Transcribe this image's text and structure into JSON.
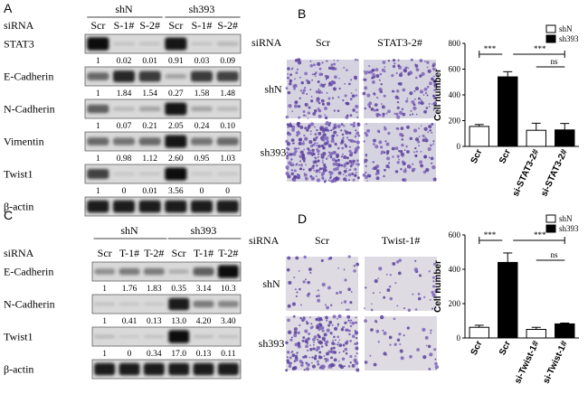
{
  "panelA": {
    "letter": "A",
    "siRNA_label": "siRNA",
    "group1": "shN",
    "group2": "sh393",
    "lanes": [
      "Scr",
      "S-1#",
      "S-2#",
      "Scr",
      "S-1#",
      "S-2#"
    ],
    "blots": [
      {
        "name": "STAT3",
        "quant": [
          "1",
          "0.02",
          "0.01",
          "0.91",
          "0.03",
          "0.09"
        ],
        "intensity": [
          1,
          0.05,
          0.04,
          0.95,
          0.05,
          0.1
        ]
      },
      {
        "name": "E-Cadherin",
        "quant": [
          "1",
          "1.84",
          "1.54",
          "0.27",
          "1.58",
          "1.48"
        ],
        "intensity": [
          0.5,
          0.85,
          0.75,
          0.2,
          0.75,
          0.7
        ]
      },
      {
        "name": "N-Cadherin",
        "quant": [
          "1",
          "0.07",
          "0.21",
          "2.05",
          "0.24",
          "0.10"
        ],
        "intensity": [
          0.55,
          0.1,
          0.2,
          0.95,
          0.2,
          0.1
        ]
      },
      {
        "name": "Vimentin",
        "quant": [
          "1",
          "0.98",
          "1.12",
          "2.60",
          "0.95",
          "1.03"
        ],
        "intensity": [
          0.5,
          0.45,
          0.5,
          0.95,
          0.45,
          0.5
        ]
      },
      {
        "name": "Twist1",
        "quant": [
          "1",
          "0",
          "0.01",
          "3.56",
          "0",
          "0"
        ],
        "intensity": [
          0.7,
          0.02,
          0.03,
          0.98,
          0.02,
          0.02
        ]
      },
      {
        "name": "β-actin",
        "quant": [],
        "intensity": [
          0.9,
          0.9,
          0.9,
          0.9,
          0.9,
          0.9
        ]
      }
    ]
  },
  "panelB": {
    "letter": "B",
    "siRNA_label": "siRNA",
    "col1": "Scr",
    "col2": "STAT3-2#",
    "row1": "shN",
    "row2": "sh393",
    "density": [
      [
        0.35,
        0.35
      ],
      [
        0.8,
        0.3
      ]
    ]
  },
  "panelC": {
    "letter": "C",
    "siRNA_label": "siRNA",
    "group1": "shN",
    "group2": "sh393",
    "lanes": [
      "Scr",
      "T-1#",
      "T-2#",
      "Scr",
      "T-1#",
      "T-2#"
    ],
    "blots": [
      {
        "name": "E-Cadherin",
        "quant": [
          "1",
          "1.76",
          "1.83",
          "0.35",
          "3.14",
          "10.3"
        ],
        "intensity": [
          0.3,
          0.4,
          0.4,
          0.15,
          0.55,
          0.98
        ]
      },
      {
        "name": "N-Cadherin",
        "quant": [
          "1",
          "0.41",
          "0.13",
          "13.0",
          "4.20",
          "3.40"
        ],
        "intensity": [
          0.05,
          0.03,
          0.02,
          0.9,
          0.4,
          0.35
        ]
      },
      {
        "name": "Twist1",
        "quant": [
          "1",
          "0",
          "0.34",
          "17.0",
          "0.13",
          "0.11"
        ],
        "intensity": [
          0.08,
          0.01,
          0.05,
          0.98,
          0.06,
          0.05
        ]
      },
      {
        "name": "β-actin",
        "quant": [],
        "intensity": [
          0.9,
          0.9,
          0.9,
          0.9,
          0.9,
          0.9
        ]
      }
    ]
  },
  "panelD": {
    "letter": "D",
    "siRNA_label": "siRNA",
    "col1": "Scr",
    "col2": "Twist-1#",
    "row1": "shN",
    "row2": "sh393",
    "density": [
      [
        0.12,
        0.1
      ],
      [
        0.55,
        0.1
      ]
    ]
  },
  "chart_data": [
    {
      "type": "bar",
      "ylabel": "Cell number",
      "ylim": [
        0,
        800
      ],
      "yticks": [
        "0",
        "200",
        "400",
        "600",
        "800"
      ],
      "categories": [
        "Scr",
        "Scr",
        "si-STAT3-2#",
        "si-STAT3-2#"
      ],
      "values": [
        155,
        540,
        125,
        128
      ],
      "errors": [
        15,
        40,
        55,
        50
      ],
      "fill": [
        "shN",
        "sh393",
        "shN",
        "sh393"
      ],
      "legend": [
        "shN",
        "sh393"
      ],
      "significance": [
        "***",
        "***",
        "ns"
      ]
    },
    {
      "type": "bar",
      "ylabel": "Cell number",
      "ylim": [
        0,
        600
      ],
      "yticks": [
        "0",
        "200",
        "400",
        "600"
      ],
      "categories": [
        "Scr",
        "Scr",
        "si-Twist-1#",
        "si-Twist-1#"
      ],
      "values": [
        62,
        440,
        50,
        82
      ],
      "errors": [
        12,
        55,
        12,
        5
      ],
      "fill": [
        "shN",
        "sh393",
        "shN",
        "sh393"
      ],
      "legend": [
        "shN",
        "sh393"
      ],
      "significance": [
        "***",
        "***",
        "ns"
      ]
    }
  ]
}
